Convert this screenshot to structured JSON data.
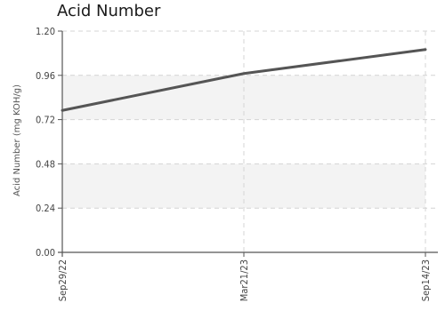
{
  "chart_data": {
    "type": "line",
    "title": "Acid Number",
    "ylabel": "Acid Number (mg KOH/g)",
    "xlabel": "",
    "ylim": [
      0,
      1.2
    ],
    "yticks": [
      "0.00",
      "0.24",
      "0.48",
      "0.72",
      "0.96",
      "1.20"
    ],
    "categories": [
      "Sep29/22",
      "Mar21/23",
      "Sep14/23"
    ],
    "series": [
      {
        "values": [
          0.77,
          0.97,
          1.1
        ]
      }
    ],
    "grid": true,
    "legend": "none",
    "colors": {
      "line": "#555555",
      "band": "#f3f3f3",
      "grid": "#d4d4d4",
      "axis": "#555555"
    }
  }
}
